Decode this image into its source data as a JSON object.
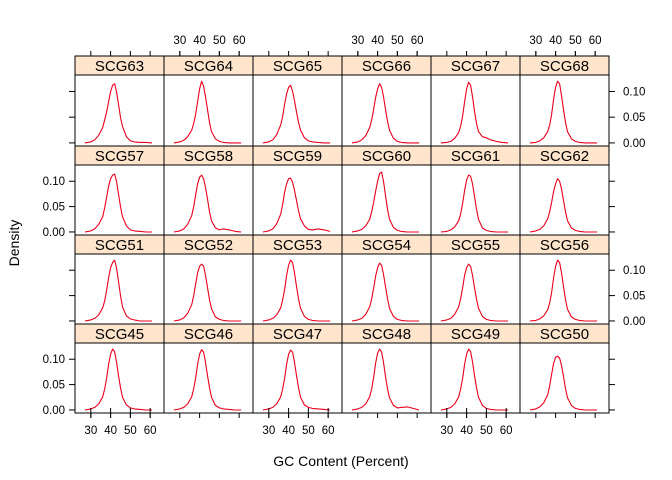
{
  "chart_data": {
    "type": "line",
    "layout": "lattice",
    "columns": 6,
    "rows": 4,
    "xlabel": "GC Content (Percent)",
    "ylabel": "Density",
    "xlim": [
      22,
      67
    ],
    "ylim": [
      -0.006,
      0.132
    ],
    "x_ticks": [
      30,
      40,
      50,
      60
    ],
    "x_tick_labels": [
      "30",
      "40",
      "50",
      "60"
    ],
    "y_ticks": [
      0.0,
      0.05,
      0.1
    ],
    "y_tick_labels": [
      "0.00",
      "0.05",
      "0.10"
    ],
    "line_color": "#e8001c",
    "strip_color": "#ffe5cc",
    "x": [
      27,
      30,
      32,
      34,
      36,
      37,
      38,
      39,
      40,
      41,
      42,
      43,
      44,
      45,
      46,
      48,
      50,
      52,
      55,
      58,
      61
    ],
    "panels": [
      {
        "name": "SCG63",
        "row": 1,
        "col": 1,
        "values": [
          0.0,
          0.002,
          0.006,
          0.015,
          0.03,
          0.045,
          0.06,
          0.08,
          0.1,
          0.112,
          0.115,
          0.1,
          0.075,
          0.05,
          0.032,
          0.012,
          0.004,
          0.002,
          0.001,
          0.001,
          0.0
        ]
      },
      {
        "name": "SCG64",
        "row": 1,
        "col": 2,
        "values": [
          0.0,
          0.002,
          0.005,
          0.012,
          0.025,
          0.038,
          0.055,
          0.08,
          0.105,
          0.12,
          0.11,
          0.09,
          0.065,
          0.04,
          0.022,
          0.008,
          0.003,
          0.001,
          0.0,
          0.0,
          0.0
        ]
      },
      {
        "name": "SCG65",
        "row": 1,
        "col": 3,
        "values": [
          0.0,
          0.002,
          0.006,
          0.016,
          0.035,
          0.052,
          0.075,
          0.095,
          0.108,
          0.112,
          0.1,
          0.082,
          0.06,
          0.04,
          0.025,
          0.01,
          0.004,
          0.002,
          0.001,
          0.0,
          0.0
        ]
      },
      {
        "name": "SCG66",
        "row": 1,
        "col": 4,
        "values": [
          0.0,
          0.002,
          0.006,
          0.014,
          0.03,
          0.045,
          0.065,
          0.088,
          0.105,
          0.115,
          0.108,
          0.09,
          0.065,
          0.042,
          0.025,
          0.009,
          0.003,
          0.001,
          0.0,
          0.0,
          0.0
        ]
      },
      {
        "name": "SCG67",
        "row": 1,
        "col": 5,
        "values": [
          0.0,
          0.001,
          0.003,
          0.009,
          0.02,
          0.033,
          0.052,
          0.08,
          0.105,
          0.118,
          0.112,
          0.09,
          0.062,
          0.038,
          0.022,
          0.012,
          0.01,
          0.006,
          0.003,
          0.001,
          0.0
        ]
      },
      {
        "name": "SCG68",
        "row": 1,
        "col": 6,
        "values": [
          0.0,
          0.001,
          0.004,
          0.01,
          0.022,
          0.035,
          0.055,
          0.085,
          0.108,
          0.12,
          0.115,
          0.092,
          0.065,
          0.04,
          0.022,
          0.008,
          0.003,
          0.001,
          0.0,
          0.0,
          0.0
        ]
      },
      {
        "name": "SCG57",
        "row": 2,
        "col": 1,
        "values": [
          0.0,
          0.002,
          0.006,
          0.015,
          0.03,
          0.048,
          0.068,
          0.09,
          0.105,
          0.112,
          0.114,
          0.1,
          0.075,
          0.05,
          0.03,
          0.012,
          0.004,
          0.002,
          0.001,
          0.0,
          0.0
        ]
      },
      {
        "name": "SCG58",
        "row": 2,
        "col": 2,
        "values": [
          0.0,
          0.002,
          0.006,
          0.015,
          0.032,
          0.05,
          0.072,
          0.095,
          0.108,
          0.112,
          0.105,
          0.088,
          0.065,
          0.04,
          0.022,
          0.008,
          0.004,
          0.006,
          0.004,
          0.001,
          0.0
        ]
      },
      {
        "name": "SCG59",
        "row": 2,
        "col": 3,
        "values": [
          0.0,
          0.002,
          0.006,
          0.016,
          0.035,
          0.055,
          0.078,
          0.095,
          0.105,
          0.106,
          0.098,
          0.082,
          0.062,
          0.042,
          0.026,
          0.012,
          0.005,
          0.004,
          0.006,
          0.004,
          0.001
        ]
      },
      {
        "name": "SCG60",
        "row": 2,
        "col": 4,
        "values": [
          0.0,
          0.002,
          0.005,
          0.012,
          0.025,
          0.04,
          0.058,
          0.08,
          0.1,
          0.115,
          0.118,
          0.1,
          0.072,
          0.045,
          0.025,
          0.009,
          0.003,
          0.001,
          0.0,
          0.0,
          0.0
        ]
      },
      {
        "name": "SCG61",
        "row": 2,
        "col": 5,
        "values": [
          0.0,
          0.001,
          0.004,
          0.01,
          0.022,
          0.036,
          0.056,
          0.082,
          0.102,
          0.112,
          0.11,
          0.095,
          0.07,
          0.045,
          0.025,
          0.008,
          0.003,
          0.001,
          0.0,
          0.0,
          0.0
        ]
      },
      {
        "name": "SCG62",
        "row": 2,
        "col": 6,
        "values": [
          0.0,
          0.002,
          0.005,
          0.012,
          0.026,
          0.04,
          0.058,
          0.08,
          0.095,
          0.105,
          0.1,
          0.085,
          0.062,
          0.04,
          0.022,
          0.008,
          0.003,
          0.001,
          0.0,
          0.0,
          0.0
        ]
      },
      {
        "name": "SCG51",
        "row": 3,
        "col": 1,
        "values": [
          0.0,
          0.002,
          0.005,
          0.012,
          0.026,
          0.04,
          0.06,
          0.085,
          0.105,
          0.115,
          0.12,
          0.105,
          0.078,
          0.05,
          0.028,
          0.01,
          0.004,
          0.002,
          0.0,
          0.0,
          0.0
        ]
      },
      {
        "name": "SCG52",
        "row": 3,
        "col": 2,
        "values": [
          0.0,
          0.002,
          0.006,
          0.015,
          0.032,
          0.05,
          0.072,
          0.095,
          0.108,
          0.112,
          0.108,
          0.09,
          0.066,
          0.042,
          0.024,
          0.008,
          0.003,
          0.001,
          0.0,
          0.0,
          0.0
        ]
      },
      {
        "name": "SCG53",
        "row": 3,
        "col": 3,
        "values": [
          0.0,
          0.002,
          0.005,
          0.012,
          0.026,
          0.042,
          0.062,
          0.09,
          0.11,
          0.12,
          0.115,
          0.095,
          0.068,
          0.044,
          0.025,
          0.009,
          0.003,
          0.001,
          0.0,
          0.0,
          0.0
        ]
      },
      {
        "name": "SCG54",
        "row": 3,
        "col": 4,
        "values": [
          0.0,
          0.002,
          0.005,
          0.013,
          0.028,
          0.044,
          0.064,
          0.088,
          0.105,
          0.114,
          0.11,
          0.092,
          0.068,
          0.044,
          0.025,
          0.009,
          0.003,
          0.001,
          0.0,
          0.0,
          0.0
        ]
      },
      {
        "name": "SCG55",
        "row": 3,
        "col": 5,
        "values": [
          0.0,
          0.002,
          0.005,
          0.013,
          0.028,
          0.044,
          0.065,
          0.09,
          0.105,
          0.112,
          0.108,
          0.09,
          0.066,
          0.043,
          0.025,
          0.009,
          0.003,
          0.001,
          0.0,
          0.0,
          0.0
        ]
      },
      {
        "name": "SCG56",
        "row": 3,
        "col": 6,
        "values": [
          0.0,
          0.001,
          0.004,
          0.01,
          0.022,
          0.036,
          0.056,
          0.085,
          0.108,
          0.12,
          0.115,
          0.095,
          0.068,
          0.042,
          0.023,
          0.008,
          0.003,
          0.001,
          0.0,
          0.0,
          0.0
        ]
      },
      {
        "name": "SCG45",
        "row": 4,
        "col": 1,
        "values": [
          0.0,
          0.002,
          0.005,
          0.012,
          0.026,
          0.042,
          0.062,
          0.09,
          0.11,
          0.12,
          0.115,
          0.095,
          0.068,
          0.044,
          0.025,
          0.01,
          0.004,
          0.002,
          0.001,
          0.0,
          0.0
        ]
      },
      {
        "name": "SCG46",
        "row": 4,
        "col": 2,
        "values": [
          0.0,
          0.002,
          0.005,
          0.012,
          0.026,
          0.042,
          0.062,
          0.09,
          0.11,
          0.119,
          0.114,
          0.094,
          0.068,
          0.044,
          0.025,
          0.009,
          0.004,
          0.002,
          0.001,
          0.0,
          0.0
        ]
      },
      {
        "name": "SCG47",
        "row": 4,
        "col": 3,
        "values": [
          0.0,
          0.002,
          0.005,
          0.012,
          0.026,
          0.042,
          0.062,
          0.09,
          0.11,
          0.118,
          0.114,
          0.094,
          0.068,
          0.044,
          0.025,
          0.01,
          0.005,
          0.003,
          0.002,
          0.001,
          0.0
        ]
      },
      {
        "name": "SCG48",
        "row": 4,
        "col": 4,
        "values": [
          0.0,
          0.002,
          0.005,
          0.012,
          0.026,
          0.042,
          0.064,
          0.092,
          0.112,
          0.12,
          0.114,
          0.094,
          0.066,
          0.042,
          0.024,
          0.009,
          0.004,
          0.005,
          0.006,
          0.003,
          0.0
        ]
      },
      {
        "name": "SCG49",
        "row": 4,
        "col": 5,
        "values": [
          0.0,
          0.002,
          0.005,
          0.012,
          0.026,
          0.042,
          0.062,
          0.09,
          0.11,
          0.12,
          0.115,
          0.095,
          0.068,
          0.044,
          0.025,
          0.009,
          0.003,
          0.001,
          0.0,
          0.0,
          0.0
        ]
      },
      {
        "name": "SCG50",
        "row": 4,
        "col": 6,
        "values": [
          0.0,
          0.002,
          0.006,
          0.014,
          0.03,
          0.048,
          0.07,
          0.092,
          0.104,
          0.106,
          0.102,
          0.088,
          0.066,
          0.042,
          0.024,
          0.009,
          0.003,
          0.001,
          0.0,
          0.0,
          0.0
        ]
      }
    ]
  }
}
